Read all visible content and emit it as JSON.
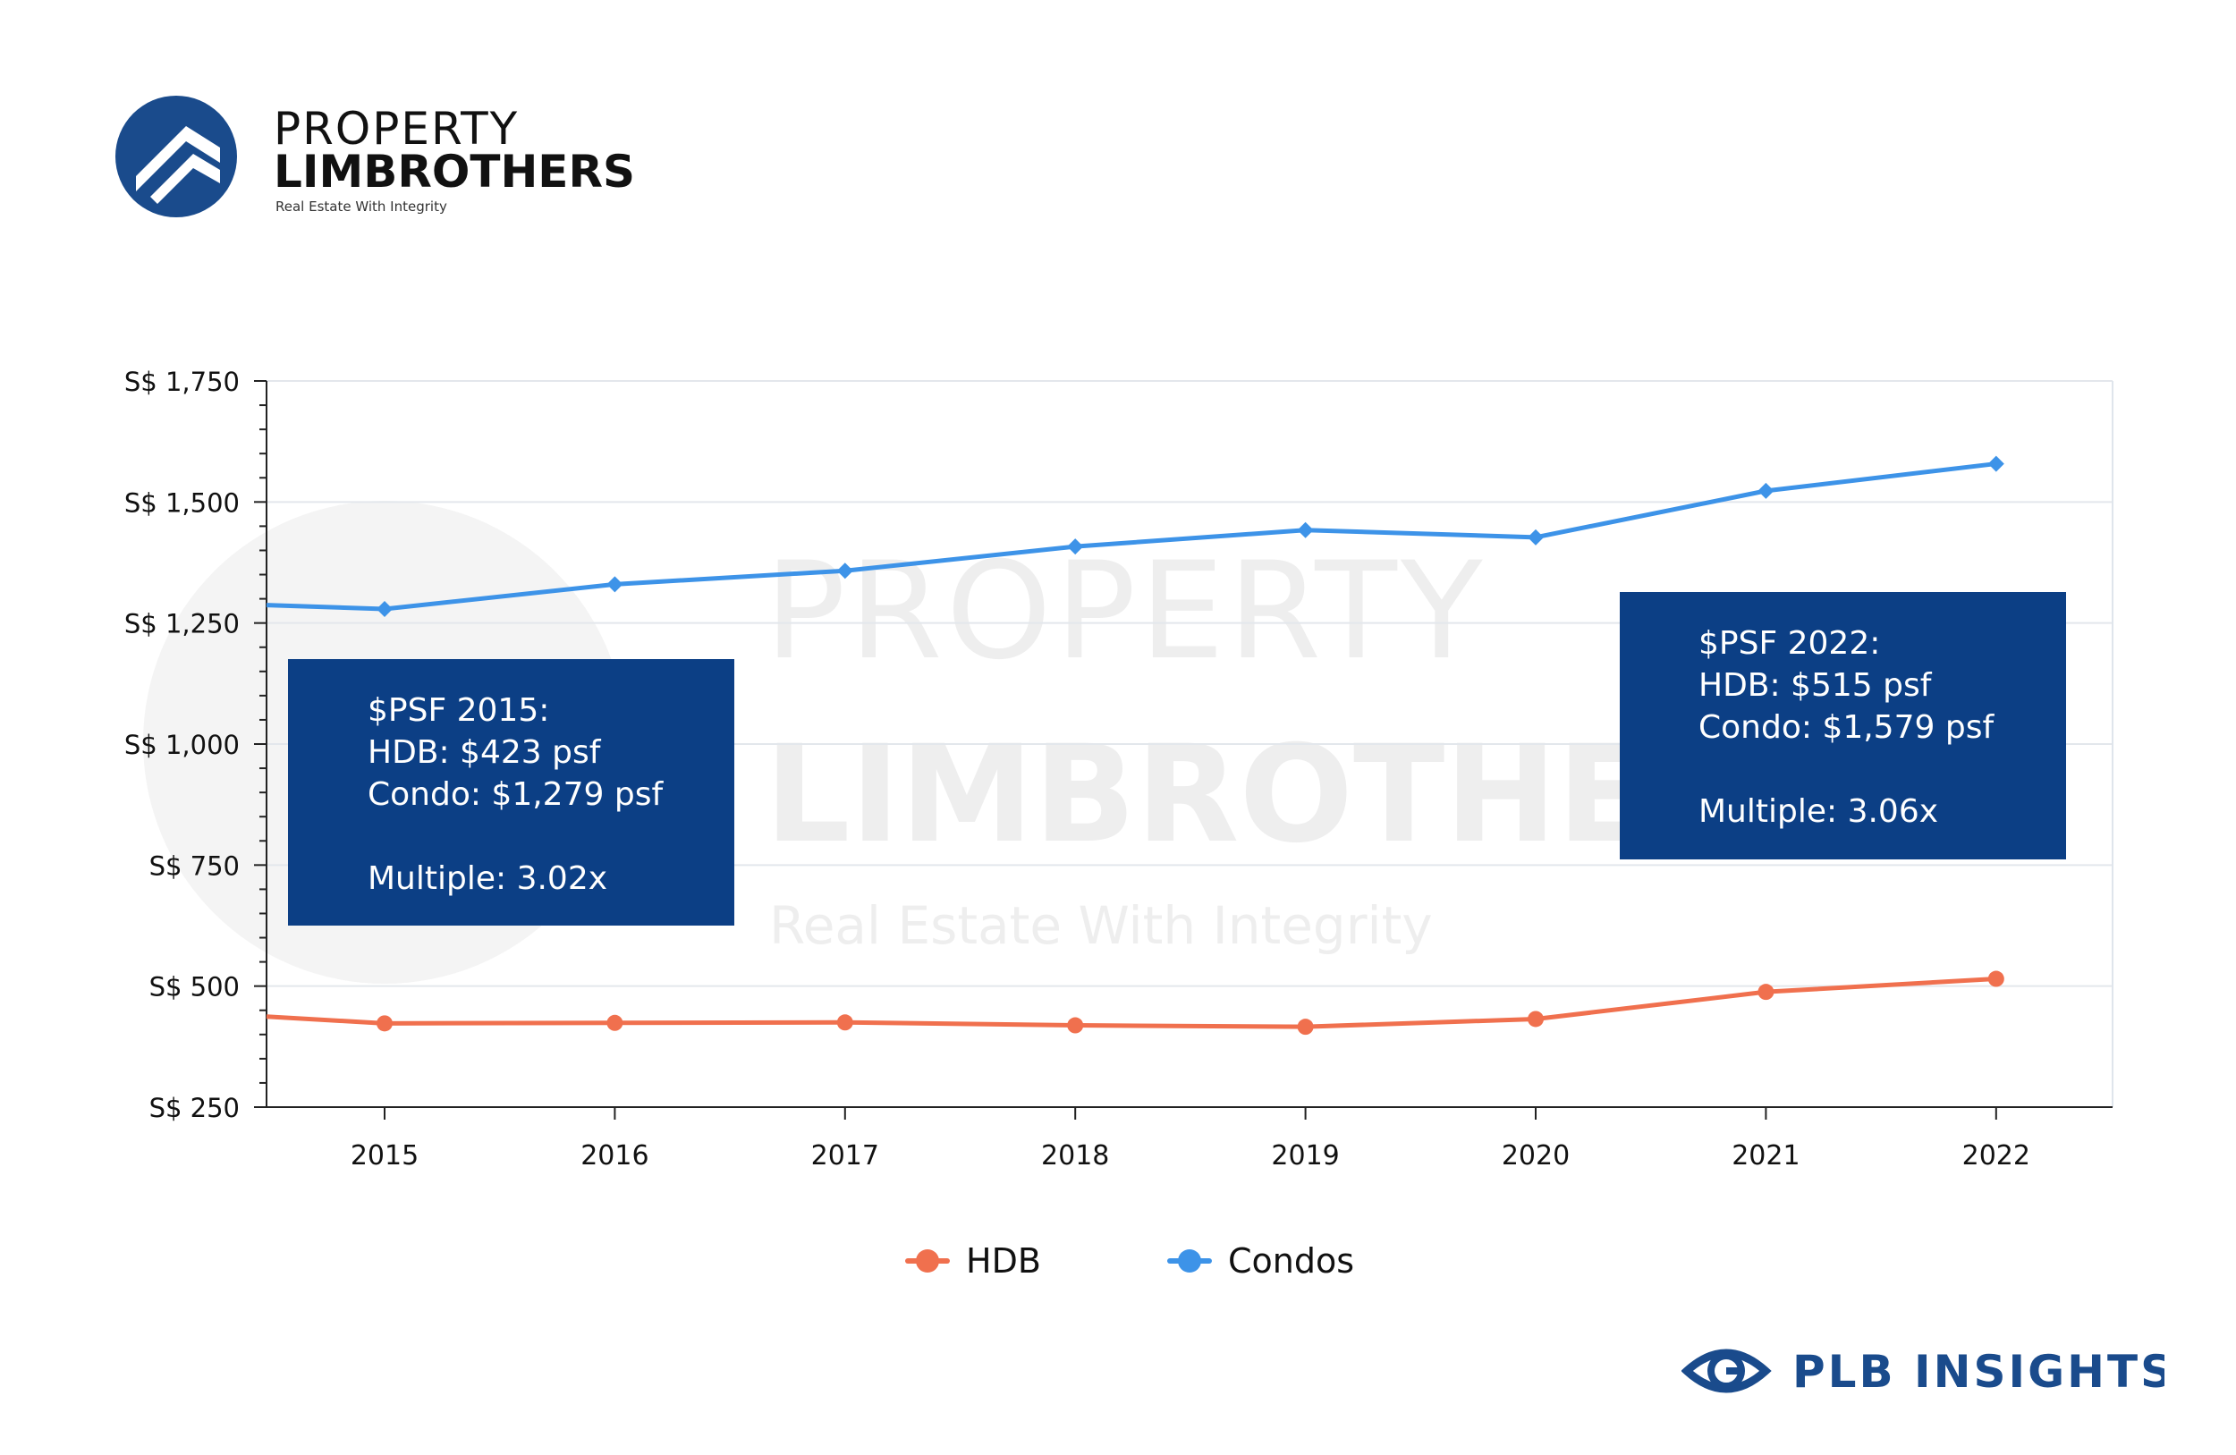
{
  "brand": {
    "name_top": "PROPERTY",
    "name_bottom": "LIMBROTHERS",
    "tagline": "Real Estate With Integrity",
    "insights_label": "PLB INSIGHTS",
    "primary_color": "#1a4b8c"
  },
  "watermark": {
    "line1": "PROPERTY",
    "line2": "LIMBROTHERS",
    "line3": "Real Estate With Integrity"
  },
  "annotations": [
    {
      "title": "$PSF 2015:",
      "hdb": "HDB: $423 psf",
      "condo": "Condo: $1,279 psf",
      "multiple": "Multiple: 3.02x"
    },
    {
      "title": "$PSF 2022:",
      "hdb": "HDB: $515 psf",
      "condo": "Condo: $1,579 psf",
      "multiple": "Multiple: 3.06x"
    }
  ],
  "chart_data": {
    "type": "line",
    "title": "",
    "xlabel": "",
    "ylabel": "",
    "categories": [
      "2015",
      "2016",
      "2017",
      "2018",
      "2019",
      "2020",
      "2021",
      "2022"
    ],
    "ylim": [
      250,
      1750
    ],
    "yticks": [
      250,
      500,
      750,
      1000,
      1250,
      1500,
      1750
    ],
    "ytick_labels": [
      "S$ 250",
      "S$ 500",
      "S$ 750",
      "S$ 1,000",
      "S$ 1,250",
      "S$ 1,500",
      "S$ 1,750"
    ],
    "grid": true,
    "legend_position": "bottom-center",
    "series": [
      {
        "name": "HDB",
        "color": "#f0704e",
        "marker": "circle",
        "values": [
          423,
          424,
          425,
          419,
          416,
          432,
          488,
          515
        ],
        "left_edge_value": 437
      },
      {
        "name": "Condos",
        "color": "#3d93e8",
        "marker": "diamond",
        "values": [
          1279,
          1330,
          1358,
          1408,
          1442,
          1427,
          1523,
          1579
        ],
        "left_edge_value": 1287
      }
    ]
  }
}
